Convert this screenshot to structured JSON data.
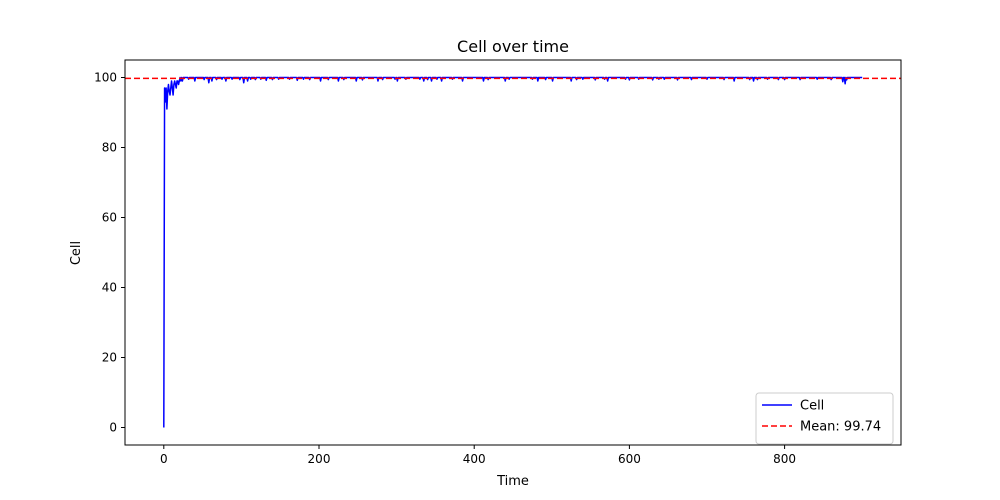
{
  "chart_data": {
    "type": "line",
    "title": "Cell over time",
    "xlabel": "Time",
    "ylabel": "Cell",
    "xlim": [
      -50,
      950
    ],
    "ylim": [
      -5,
      105
    ],
    "xticks": [
      0,
      200,
      400,
      600,
      800
    ],
    "yticks": [
      0,
      20,
      40,
      60,
      80,
      100
    ],
    "grid": false,
    "legend_position": "lower right",
    "series": [
      {
        "name": "Cell",
        "color": "#0000ff",
        "line_style": "solid",
        "x_start": 0,
        "x_end": 900,
        "baseline": 100,
        "head": [
          [
            0,
            0
          ],
          [
            1,
            97
          ],
          [
            2,
            93
          ],
          [
            3,
            97
          ],
          [
            4,
            91
          ],
          [
            5,
            96
          ],
          [
            6,
            98
          ],
          [
            7,
            96
          ],
          [
            8,
            95
          ],
          [
            9,
            97
          ],
          [
            10,
            99
          ],
          [
            11,
            97
          ],
          [
            12,
            95
          ],
          [
            13,
            98
          ],
          [
            14,
            99
          ],
          [
            15,
            98
          ],
          [
            16,
            97
          ],
          [
            17,
            99
          ],
          [
            18,
            99
          ],
          [
            19,
            98
          ],
          [
            20,
            99
          ],
          [
            21,
            100
          ],
          [
            22,
            99
          ],
          [
            23,
            100
          ],
          [
            24,
            99
          ],
          [
            25,
            100
          ]
        ],
        "dips": [
          [
            32,
            99.5
          ],
          [
            40,
            99
          ],
          [
            52,
            99.4
          ],
          [
            58,
            98.5
          ],
          [
            62,
            99
          ],
          [
            68,
            99.4
          ],
          [
            75,
            99.5
          ],
          [
            80,
            99
          ],
          [
            88,
            99.5
          ],
          [
            98,
            99.4
          ],
          [
            103,
            98.5
          ],
          [
            108,
            99
          ],
          [
            112,
            99.5
          ],
          [
            118,
            99.4
          ],
          [
            125,
            99.5
          ],
          [
            132,
            99.2
          ],
          [
            140,
            99.4
          ],
          [
            148,
            99.5
          ],
          [
            162,
            99.5
          ],
          [
            172,
            99.2
          ],
          [
            180,
            99.5
          ],
          [
            188,
            99.4
          ],
          [
            202,
            99
          ],
          [
            212,
            99.4
          ],
          [
            225,
            99
          ],
          [
            232,
            99.4
          ],
          [
            248,
            99
          ],
          [
            256,
            99.3
          ],
          [
            276,
            99
          ],
          [
            282,
            99.4
          ],
          [
            298,
            99.5
          ],
          [
            301,
            99
          ],
          [
            312,
            99.5
          ],
          [
            330,
            99.5
          ],
          [
            335,
            99
          ],
          [
            340,
            99.4
          ],
          [
            345,
            99
          ],
          [
            352,
            99.5
          ],
          [
            358,
            99
          ],
          [
            372,
            99.5
          ],
          [
            385,
            99
          ],
          [
            412,
            99
          ],
          [
            418,
            99.4
          ],
          [
            440,
            99
          ],
          [
            445,
            99.5
          ],
          [
            475,
            99.5
          ],
          [
            482,
            99
          ],
          [
            492,
            99.4
          ],
          [
            501,
            99
          ],
          [
            525,
            99
          ],
          [
            532,
            99.4
          ],
          [
            540,
            99.5
          ],
          [
            556,
            99.3
          ],
          [
            568,
            99.5
          ],
          [
            572,
            99
          ],
          [
            595,
            99.5
          ],
          [
            600,
            99.3
          ],
          [
            612,
            99.5
          ],
          [
            630,
            99.3
          ],
          [
            638,
            99.5
          ],
          [
            645,
            99.5
          ],
          [
            662,
            99.3
          ],
          [
            680,
            99.4
          ],
          [
            700,
            99.5
          ],
          [
            722,
            99.4
          ],
          [
            735,
            99
          ],
          [
            755,
            99.4
          ],
          [
            760,
            99
          ],
          [
            765,
            99.4
          ],
          [
            778,
            99.5
          ],
          [
            792,
            99.4
          ],
          [
            800,
            99.4
          ],
          [
            820,
            99.4
          ],
          [
            842,
            99.5
          ],
          [
            860,
            99.4
          ],
          [
            875,
            98.8
          ],
          [
            878,
            98.2
          ],
          [
            880,
            99.3
          ]
        ]
      },
      {
        "name": "Mean: 99.74",
        "color": "#ff0000",
        "line_style": "dashed",
        "y": 99.74
      }
    ]
  }
}
